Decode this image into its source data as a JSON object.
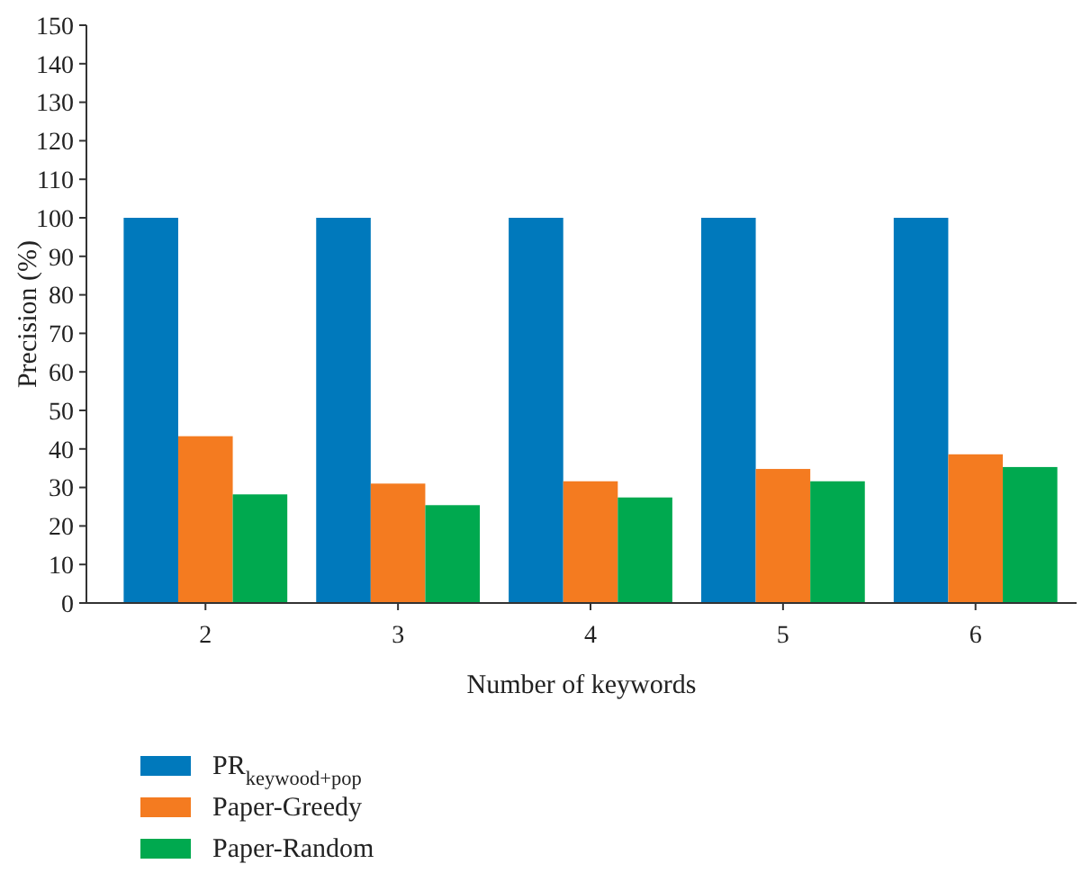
{
  "chart_data": {
    "type": "bar",
    "xlabel": "Number of keywords",
    "ylabel": "Precision (%)",
    "categories": [
      "2",
      "3",
      "4",
      "5",
      "6"
    ],
    "series": [
      {
        "name": "PR$_{keywood+pop}$",
        "color": "#0079bc",
        "values": [
          100,
          100,
          100,
          100,
          100
        ]
      },
      {
        "name": "Paper-Greedy",
        "color": "#f47b20",
        "values": [
          43.3,
          31,
          31.6,
          34.8,
          38.6
        ]
      },
      {
        "name": "Paper-Random",
        "color": "#00a94f",
        "values": [
          28.2,
          25.4,
          27.4,
          31.6,
          35.3
        ]
      }
    ],
    "ylim": [
      0,
      150
    ],
    "yticks": [
      0,
      10,
      20,
      30,
      40,
      50,
      60,
      70,
      80,
      90,
      100,
      110,
      120,
      130,
      140,
      150
    ],
    "grid": false,
    "legend": "bottom left"
  }
}
